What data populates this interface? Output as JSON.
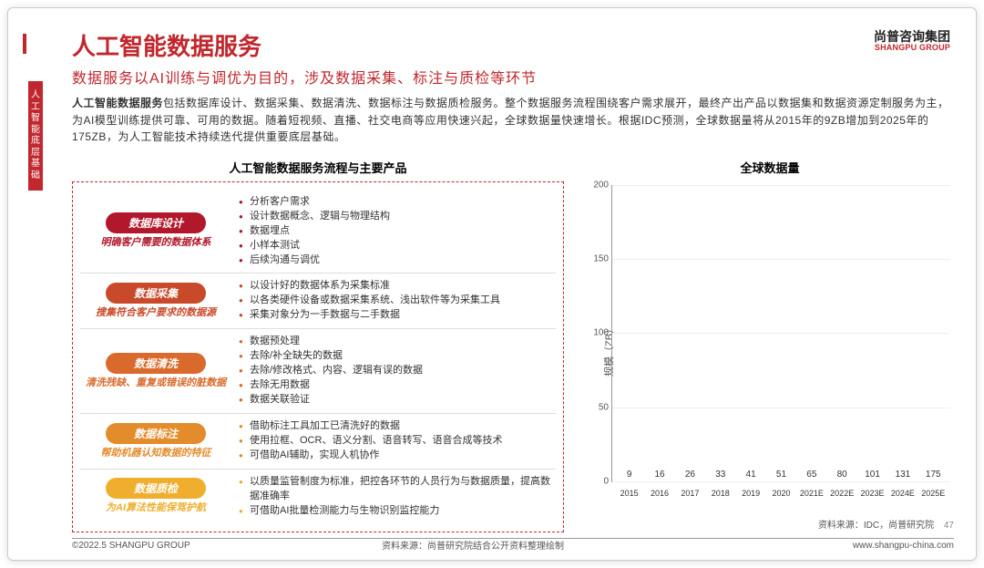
{
  "logo": {
    "cn": "尚普咨询集团",
    "en": "SHANGPU GROUP"
  },
  "side_tab": "人工智能底层基础",
  "title": "人工智能数据服务",
  "subtitle": "数据服务以AI训练与调优为目的，涉及数据采集、标注与质检等环节",
  "para_em": "人工智能数据服务",
  "para_rest": "包括数据库设计、数据采集、数据清洗、数据标注与数据质检服务。整个数据服务流程围绕客户需求展开，最终产出产品以数据集和数据资源定制服务为主，为AI模型训练提供可靠、可用的数据。随着短视频、直播、社交电商等应用快速兴起，全球数据量快速增长。根据IDC预测，全球数据量将从2015年的9ZB增加到2025年的175ZB，为人工智能技术持续迭代提供重要底层基础。",
  "left_title": "人工智能数据服务流程与主要产品",
  "right_title": "全球数据量",
  "steps": [
    {
      "pill": "数据库设计",
      "sub": "明确客户需要的数据体系",
      "color": "#b2182b",
      "sub_color": "#b2182b",
      "items": [
        "分析客户需求",
        "设计数据概念、逻辑与物理结构",
        "数据埋点",
        "小样本测试",
        "后续沟通与调优"
      ]
    },
    {
      "pill": "数据采集",
      "sub": "搜集符合客户要求的数据源",
      "color": "#c94a2b",
      "sub_color": "#c94a2b",
      "items": [
        "以设计好的数据体系为采集标准",
        "以各类硬件设备或数据采集系统、浅出软件等为采集工具",
        "采集对象分为一手数据与二手数据"
      ]
    },
    {
      "pill": "数据清洗",
      "sub": "清洗残缺、重复或错误的脏数据",
      "color": "#d96a2b",
      "sub_color": "#d96a2b",
      "items": [
        "数据预处理",
        "去除/补全缺失的数据",
        "去除/修改格式、内容、逻辑有误的数据",
        "去除无用数据",
        "数据关联验证"
      ]
    },
    {
      "pill": "数据标注",
      "sub": "帮助机器认知数据的特征",
      "color": "#e38c2c",
      "sub_color": "#e38c2c",
      "items": [
        "借助标注工具加工已清洗好的数据",
        "使用拉框、OCR、语义分割、语音转写、语音合成等技术",
        "可借助AI辅助，实现人机协作"
      ]
    },
    {
      "pill": "数据质检",
      "sub": "为AI算法性能保驾护航",
      "color": "#efae2e",
      "sub_color": "#efae2e",
      "items": [
        "以质量监管制度为标准，把控各环节的人员行为与数据质量，提高数据准确率",
        "可借助AI批量检测能力与生物识别监控能力"
      ]
    }
  ],
  "flow_color": "#c1272d",
  "left_source": "资料来源：尚普研究院结合公开资料整理绘制",
  "chart": {
    "ylabel": "规模（ZB）",
    "ymax": 200,
    "ytick_step": 50,
    "categories": [
      "2015",
      "2016",
      "2017",
      "2018",
      "2019",
      "2020",
      "2021E",
      "2022E",
      "2023E",
      "2024E",
      "2025E"
    ],
    "values": [
      9,
      16,
      26,
      33,
      41,
      51,
      65,
      80,
      101,
      131,
      175
    ],
    "bar_color": "#c1272d",
    "grid_color": "#eeeeee"
  },
  "right_source": "资料来源：IDC，尚普研究院",
  "footer_left": "©2022.5 SHANGPU GROUP",
  "footer_url": "www.shangpu-china.com",
  "page_num": "47"
}
